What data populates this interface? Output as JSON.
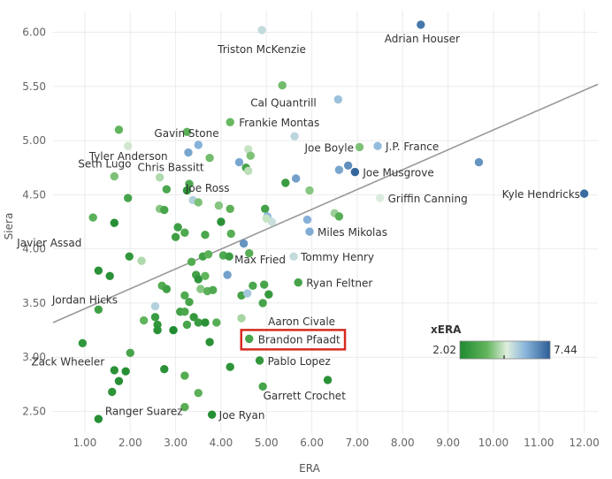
{
  "chart_data": {
    "type": "scatter",
    "xlabel": "ERA",
    "ylabel": "Siera",
    "xlim": [
      0.3,
      12.3
    ],
    "ylim": [
      2.3,
      6.2
    ],
    "x_ticks": [
      "1.00",
      "2.00",
      "3.00",
      "4.00",
      "5.00",
      "6.00",
      "7.00",
      "8.00",
      "9.00",
      "10.00",
      "11.00",
      "12.00"
    ],
    "y_ticks": [
      "2.50",
      "3.00",
      "3.50",
      "4.00",
      "4.50",
      "5.00",
      "5.50",
      "6.00"
    ],
    "trend_line": {
      "x1": 0.3,
      "y1": 3.32,
      "x2": 12.3,
      "y2": 5.52
    },
    "legend": {
      "title": "xERA",
      "min": 2.02,
      "max": 7.44,
      "min_label": "2.02",
      "max_label": "7.44"
    },
    "highlight": "Brandon Pfaadt",
    "points": [
      {
        "label": "Adrian Houser",
        "x": 8.4,
        "y": 6.07,
        "xera": 7.0
      },
      {
        "label": "Triston McKenzie",
        "x": 4.9,
        "y": 6.02,
        "xera": 5.2
      },
      {
        "label": "Cal Quantrill",
        "x": 5.35,
        "y": 5.51,
        "xera": 3.8
      },
      {
        "x": 6.58,
        "y": 5.38,
        "xera": 5.7
      },
      {
        "label": "Gavin Stone",
        "x": 1.75,
        "y": 5.1,
        "xera": 3.6
      },
      {
        "label": "Frankie Montas",
        "x": 4.2,
        "y": 5.17,
        "xera": 3.7
      },
      {
        "x": 3.25,
        "y": 5.08,
        "xera": 3.5
      },
      {
        "x": 3.5,
        "y": 4.96,
        "xera": 6.0
      },
      {
        "x": 3.28,
        "y": 4.89,
        "xera": 6.2
      },
      {
        "x": 4.6,
        "y": 4.92,
        "xera": 4.6
      },
      {
        "x": 4.65,
        "y": 4.86,
        "xera": 3.9
      },
      {
        "label": "Tyler Anderson",
        "x": 1.95,
        "y": 4.95,
        "xera": 4.7
      },
      {
        "label": "Seth Lugo",
        "x": 1.65,
        "y": 4.67,
        "xera": 3.9
      },
      {
        "x": 3.75,
        "y": 4.84,
        "xera": 3.8
      },
      {
        "x": 5.62,
        "y": 5.04,
        "xera": 5.3
      },
      {
        "label": "Joe Boyle",
        "x": 7.05,
        "y": 4.94,
        "xera": 3.9
      },
      {
        "label": "J.P. France",
        "x": 7.45,
        "y": 4.95,
        "xera": 5.8
      },
      {
        "label": "Chris Bassitt",
        "x": 4.4,
        "y": 4.8,
        "xera": 6.2
      },
      {
        "x": 4.55,
        "y": 4.75,
        "xera": 3.0
      },
      {
        "x": 4.6,
        "y": 4.72,
        "xera": 4.5
      },
      {
        "x": 6.6,
        "y": 4.73,
        "xera": 6.2
      },
      {
        "x": 6.8,
        "y": 4.77,
        "xera": 6.6
      },
      {
        "label": "Joe Musgrove",
        "x": 6.95,
        "y": 4.71,
        "xera": 7.3
      },
      {
        "x": 9.68,
        "y": 4.8,
        "xera": 6.5
      },
      {
        "label": "Joe Ross",
        "x": 5.42,
        "y": 4.61,
        "xera": 2.7
      },
      {
        "x": 5.65,
        "y": 4.65,
        "xera": 6.3
      },
      {
        "x": 5.95,
        "y": 4.54,
        "xera": 4.0
      },
      {
        "label": "Griffin Canning",
        "x": 7.5,
        "y": 4.47,
        "xera": 4.9
      },
      {
        "label": "Kyle Hendricks",
        "x": 12.0,
        "y": 4.51,
        "xera": 7.2
      },
      {
        "x": 2.65,
        "y": 4.66,
        "xera": 4.4
      },
      {
        "x": 2.8,
        "y": 4.55,
        "xera": 3.1
      },
      {
        "x": 3.3,
        "y": 4.6,
        "xera": 3.2
      },
      {
        "x": 3.25,
        "y": 4.54,
        "xera": 2.4
      },
      {
        "x": 3.38,
        "y": 4.45,
        "xera": 5.4
      },
      {
        "x": 3.5,
        "y": 4.43,
        "xera": 3.9
      },
      {
        "x": 1.95,
        "y": 4.47,
        "xera": 3.0
      },
      {
        "x": 2.65,
        "y": 4.37,
        "xera": 4.0
      },
      {
        "x": 2.75,
        "y": 4.36,
        "xera": 3.0
      },
      {
        "x": 3.95,
        "y": 4.4,
        "xera": 4.0
      },
      {
        "x": 4.2,
        "y": 4.37,
        "xera": 3.5
      },
      {
        "x": 4.97,
        "y": 4.37,
        "xera": 2.9
      },
      {
        "x": 5.02,
        "y": 4.3,
        "xera": 5.9
      },
      {
        "x": 5.12,
        "y": 4.25,
        "xera": 5.1
      },
      {
        "x": 5.0,
        "y": 4.28,
        "xera": 4.6
      },
      {
        "x": 6.5,
        "y": 4.33,
        "xera": 4.2
      },
      {
        "x": 6.6,
        "y": 4.3,
        "xera": 3.4
      },
      {
        "x": 5.9,
        "y": 4.27,
        "xera": 6.0
      },
      {
        "label": "Miles Mikolas",
        "x": 5.95,
        "y": 4.16,
        "xera": 6.1
      },
      {
        "x": 1.18,
        "y": 4.29,
        "xera": 3.5
      },
      {
        "x": 1.65,
        "y": 4.24,
        "xera": 2.2
      },
      {
        "x": 4.0,
        "y": 4.25,
        "xera": 2.3
      },
      {
        "x": 3.05,
        "y": 4.2,
        "xera": 2.8
      },
      {
        "x": 3.2,
        "y": 4.15,
        "xera": 3.2
      },
      {
        "x": 3.0,
        "y": 4.11,
        "xera": 2.8
      },
      {
        "x": 3.65,
        "y": 4.13,
        "xera": 3.1
      },
      {
        "x": 4.22,
        "y": 4.14,
        "xera": 3.4
      },
      {
        "x": 4.5,
        "y": 4.05,
        "xera": 6.5
      },
      {
        "label": "Javier Assad",
        "x": 1.98,
        "y": 3.93,
        "xera": 2.5
      },
      {
        "x": 2.25,
        "y": 3.89,
        "xera": 4.4
      },
      {
        "x": 3.35,
        "y": 3.88,
        "xera": 3.3
      },
      {
        "x": 3.6,
        "y": 3.93,
        "xera": 2.9
      },
      {
        "x": 3.72,
        "y": 3.95,
        "xera": 3.5
      },
      {
        "x": 4.05,
        "y": 3.94,
        "xera": 3.2
      },
      {
        "x": 4.18,
        "y": 3.93,
        "xera": 2.7
      },
      {
        "x": 4.62,
        "y": 3.96,
        "xera": 3.4
      },
      {
        "label": "Tommy Henry",
        "x": 5.6,
        "y": 3.93,
        "xera": 5.2
      },
      {
        "x": 1.3,
        "y": 3.8,
        "xera": 2.3
      },
      {
        "x": 1.55,
        "y": 3.75,
        "xera": 2.3
      },
      {
        "x": 3.45,
        "y": 3.76,
        "xera": 2.9
      },
      {
        "x": 3.5,
        "y": 3.72,
        "xera": 2.4
      },
      {
        "x": 3.65,
        "y": 3.75,
        "xera": 3.6
      },
      {
        "label": "Max Fried",
        "x": 4.14,
        "y": 3.76,
        "xera": 6.3
      },
      {
        "label": "Ryan Feltner",
        "x": 5.7,
        "y": 3.69,
        "xera": 3.0
      },
      {
        "x": 2.7,
        "y": 3.66,
        "xera": 3.3
      },
      {
        "x": 2.8,
        "y": 3.63,
        "xera": 2.8
      },
      {
        "x": 3.55,
        "y": 3.63,
        "xera": 4.0
      },
      {
        "x": 3.7,
        "y": 3.61,
        "xera": 3.5
      },
      {
        "x": 3.82,
        "y": 3.62,
        "xera": 3.2
      },
      {
        "x": 4.45,
        "y": 3.57,
        "xera": 3.0
      },
      {
        "x": 4.58,
        "y": 3.59,
        "xera": 5.6
      },
      {
        "x": 4.7,
        "y": 3.66,
        "xera": 3.1
      },
      {
        "x": 4.95,
        "y": 3.67,
        "xera": 3.0
      },
      {
        "x": 5.05,
        "y": 3.58,
        "xera": 2.6
      },
      {
        "label": "Jordan Hicks",
        "x": 3.2,
        "y": 3.57,
        "xera": 3.2
      },
      {
        "x": 2.55,
        "y": 3.47,
        "xera": 5.4
      },
      {
        "x": 3.3,
        "y": 3.51,
        "xera": 3.0
      },
      {
        "label": "Aaron Civale",
        "x": 4.92,
        "y": 3.5,
        "xera": 3.0
      },
      {
        "x": 1.3,
        "y": 3.44,
        "xera": 2.8
      },
      {
        "x": 2.3,
        "y": 3.34,
        "xera": 3.6
      },
      {
        "x": 2.55,
        "y": 3.37,
        "xera": 2.7
      },
      {
        "x": 2.6,
        "y": 3.3,
        "xera": 2.5
      },
      {
        "x": 2.6,
        "y": 3.25,
        "xera": 2.3
      },
      {
        "x": 2.95,
        "y": 3.25,
        "xera": 2.1
      },
      {
        "x": 3.1,
        "y": 3.42,
        "xera": 2.9
      },
      {
        "x": 3.2,
        "y": 3.42,
        "xera": 3.1
      },
      {
        "x": 3.25,
        "y": 3.3,
        "xera": 3.0
      },
      {
        "x": 3.4,
        "y": 3.37,
        "xera": 2.6
      },
      {
        "x": 3.5,
        "y": 3.32,
        "xera": 2.7
      },
      {
        "x": 3.65,
        "y": 3.32,
        "xera": 2.3
      },
      {
        "x": 3.9,
        "y": 3.32,
        "xera": 3.4
      },
      {
        "x": 4.45,
        "y": 3.36,
        "xera": 4.3
      },
      {
        "x": 3.75,
        "y": 3.14,
        "xera": 2.3
      },
      {
        "label": "Brandon Pfaadt",
        "x": 4.62,
        "y": 3.17,
        "xera": 3.0
      },
      {
        "label": "Zack Wheeler",
        "x": 0.95,
        "y": 3.13,
        "xera": 2.5
      },
      {
        "x": 2.0,
        "y": 3.04,
        "xera": 3.0
      },
      {
        "x": 1.65,
        "y": 2.88,
        "xera": 2.3
      },
      {
        "x": 1.9,
        "y": 2.87,
        "xera": 2.2
      },
      {
        "x": 2.75,
        "y": 2.89,
        "xera": 2.3
      },
      {
        "x": 4.2,
        "y": 2.91,
        "xera": 2.4
      },
      {
        "label": "Pablo Lopez",
        "x": 4.85,
        "y": 2.97,
        "xera": 2.5
      },
      {
        "x": 1.75,
        "y": 2.78,
        "xera": 2.2
      },
      {
        "x": 3.2,
        "y": 2.83,
        "xera": 3.3
      },
      {
        "label": "Garrett Crochet",
        "x": 6.35,
        "y": 2.79,
        "xera": 2.3
      },
      {
        "x": 4.92,
        "y": 2.73,
        "xera": 3.0
      },
      {
        "x": 1.6,
        "y": 2.68,
        "xera": 2.4
      },
      {
        "x": 3.5,
        "y": 2.67,
        "xera": 3.5
      },
      {
        "label": "Ranger Suarez",
        "x": 3.2,
        "y": 2.54,
        "xera": 3.4
      },
      {
        "label": "Joe Ryan",
        "x": 3.8,
        "y": 2.47,
        "xera": 2.2
      },
      {
        "x": 1.3,
        "y": 2.43,
        "xera": 2.2
      }
    ]
  }
}
